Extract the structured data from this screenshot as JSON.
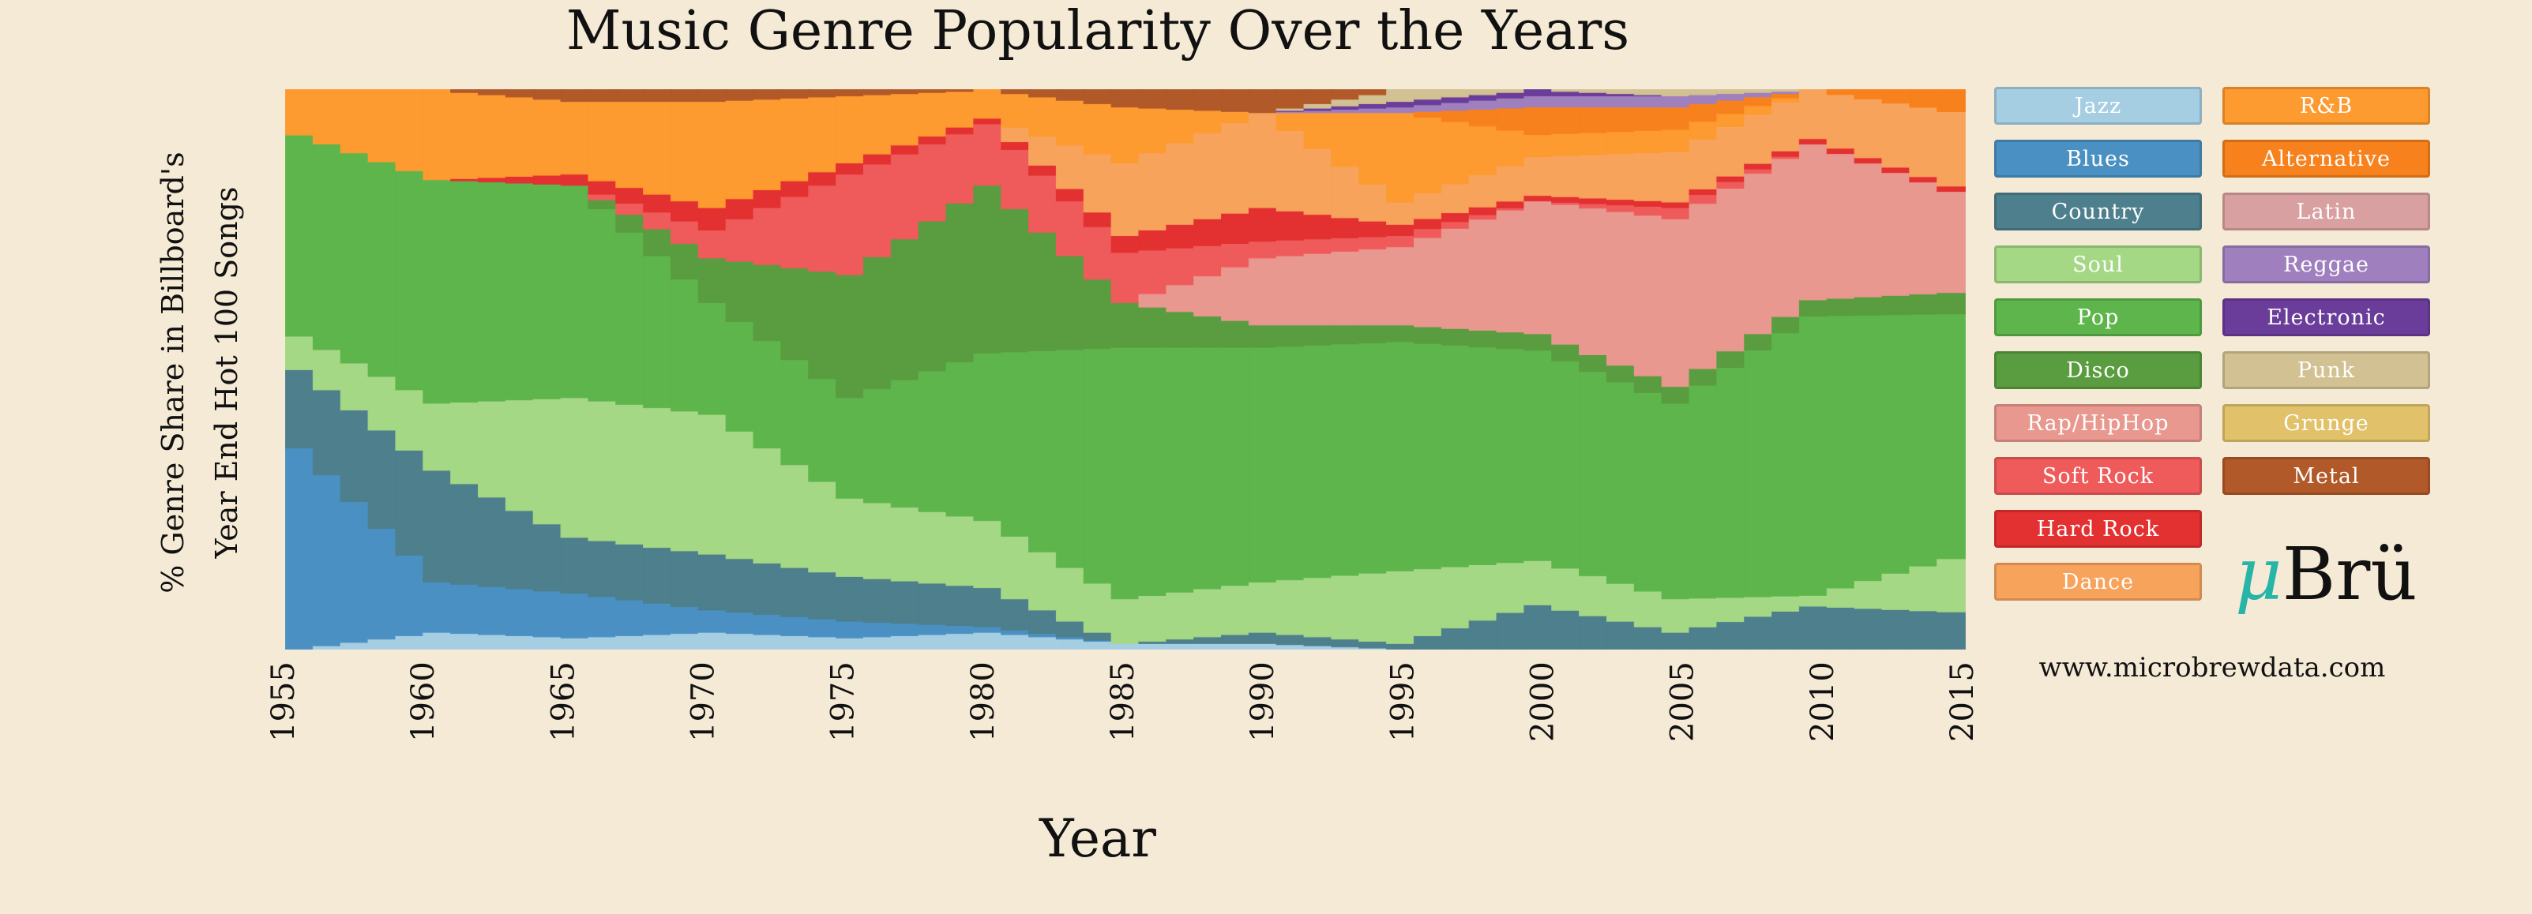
{
  "chart_data": {
    "type": "area",
    "title": "Music Genre Popularity Over the Years",
    "xlabel": "Year",
    "ylabel_line1": "% Genre Share in Billboard's",
    "ylabel_line2": "Year End Hot 100 Songs",
    "xlim": [
      1955,
      2015
    ],
    "ylim": [
      0,
      100
    ],
    "x_ticks": [
      "1955",
      "1960",
      "1965",
      "1970",
      "1975",
      "1980",
      "1985",
      "1990",
      "1995",
      "2000",
      "2005",
      "2010",
      "2015"
    ],
    "x": [
      1955,
      1960,
      1965,
      1970,
      1975,
      1980,
      1985,
      1990,
      1995,
      2000,
      2005,
      2010,
      2015
    ],
    "stack_order": "bottom to top: Jazz, Blues, Country, Soul, Pop, Disco, Rap/HipHop, Soft Rock, Hard Rock, Dance, R&B, Alternative, Latin, Reggae, Electronic, Punk, Grunge, Metal",
    "series": [
      {
        "name": "Jazz",
        "color": "#a6cee3",
        "values": [
          0,
          3,
          2,
          3,
          2,
          3,
          1,
          1,
          0,
          0,
          0,
          0,
          0
        ]
      },
      {
        "name": "Blues",
        "color": "#4a90c2",
        "values": [
          36,
          9,
          8,
          4,
          3,
          1,
          0,
          0,
          0,
          0,
          0,
          0,
          0
        ]
      },
      {
        "name": "Country",
        "color": "#4d7f8c",
        "values": [
          14,
          20,
          10,
          10,
          8,
          7,
          0,
          2,
          1,
          8,
          3,
          8,
          7
        ]
      },
      {
        "name": "Soul",
        "color": "#a5d884",
        "values": [
          6,
          12,
          25,
          25,
          14,
          12,
          8,
          9,
          13,
          8,
          6,
          2,
          10
        ]
      },
      {
        "name": "Pop",
        "color": "#5db54c",
        "values": [
          36,
          40,
          38,
          20,
          18,
          30,
          45,
          42,
          41,
          38,
          35,
          52,
          46
        ]
      },
      {
        "name": "Disco",
        "color": "#5a9c40",
        "values": [
          0,
          0,
          0,
          8,
          22,
          30,
          8,
          4,
          3,
          3,
          3,
          3,
          4
        ]
      },
      {
        "name": "Rap/HipHop",
        "color": "#e8988e",
        "values": [
          0,
          0,
          0,
          0,
          0,
          0,
          0,
          12,
          14,
          24,
          30,
          29,
          19
        ]
      },
      {
        "name": "Soft Rock",
        "color": "#ef5a5a",
        "values": [
          0,
          0,
          0,
          5,
          18,
          11,
          9,
          3,
          2,
          0,
          2,
          0,
          0
        ]
      },
      {
        "name": "Hard Rock",
        "color": "#e33030",
        "values": [
          0,
          0,
          2,
          4,
          2,
          1,
          3,
          6,
          2,
          1,
          1,
          1,
          1
        ]
      },
      {
        "name": "Dance",
        "color": "#f7a35c",
        "values": [
          0,
          0,
          0,
          0,
          0,
          0,
          13,
          17,
          4,
          7,
          9,
          9,
          14
        ]
      },
      {
        "name": "R&B",
        "color": "#fd9a30",
        "values": [
          8,
          16,
          13,
          19,
          12,
          5,
          10,
          0,
          16,
          4,
          4,
          0,
          0
        ]
      },
      {
        "name": "Alternative",
        "color": "#f7811c",
        "values": [
          0,
          0,
          0,
          0,
          0,
          0,
          0,
          0,
          0,
          5,
          4,
          0,
          4
        ]
      },
      {
        "name": "Latin",
        "color": "#d8a0a0",
        "values": [
          0,
          0,
          0,
          0,
          0,
          0,
          0,
          0,
          0,
          0,
          0,
          0,
          0
        ]
      },
      {
        "name": "Reggae",
        "color": "#9f7fbe",
        "values": [
          0,
          0,
          0,
          0,
          0,
          0,
          0,
          0,
          1,
          2,
          2,
          0,
          0
        ]
      },
      {
        "name": "Electronic",
        "color": "#6a3d9a",
        "values": [
          0,
          0,
          0,
          0,
          0,
          0,
          0,
          0,
          1,
          1,
          0,
          0,
          0
        ]
      },
      {
        "name": "Punk",
        "color": "#d2c192",
        "values": [
          0,
          0,
          0,
          0,
          0,
          0,
          0,
          0,
          2,
          0,
          1,
          0,
          0
        ]
      },
      {
        "name": "Grunge",
        "color": "#e1c26a",
        "values": [
          0,
          0,
          0,
          0,
          0,
          0,
          0,
          0,
          0,
          0,
          0,
          0,
          0
        ]
      },
      {
        "name": "Metal",
        "color": "#b15928",
        "values": [
          0,
          0,
          2,
          2,
          1,
          0,
          3,
          4,
          0,
          0,
          0,
          0,
          0
        ]
      }
    ],
    "legend_placement": "right",
    "grid": false
  },
  "legend": [
    {
      "label": "Jazz",
      "color": "#a6cee3"
    },
    {
      "label": "R&B",
      "color": "#fd9a30"
    },
    {
      "label": "Blues",
      "color": "#4a90c2"
    },
    {
      "label": "Alternative",
      "color": "#f7811c"
    },
    {
      "label": "Country",
      "color": "#4d7f8c"
    },
    {
      "label": "Latin",
      "color": "#d8a0a0"
    },
    {
      "label": "Soul",
      "color": "#a5d884"
    },
    {
      "label": "Reggae",
      "color": "#9f7fbe"
    },
    {
      "label": "Pop",
      "color": "#5db54c"
    },
    {
      "label": "Electronic",
      "color": "#6a3d9a"
    },
    {
      "label": "Disco",
      "color": "#5a9c40"
    },
    {
      "label": "Punk",
      "color": "#d2c192"
    },
    {
      "label": "Rap/HipHop",
      "color": "#e8988e"
    },
    {
      "label": "Grunge",
      "color": "#e1c26a"
    },
    {
      "label": "Soft Rock",
      "color": "#ef5a5a"
    },
    {
      "label": "Metal",
      "color": "#b15928"
    },
    {
      "label": "Hard Rock",
      "color": "#e33030"
    }
  ],
  "dance_legend": {
    "label": "Dance",
    "color": "#f7a35c"
  },
  "brand": {
    "mu": "μ",
    "name": "Brü",
    "url": "www.microbrewdata.com"
  }
}
